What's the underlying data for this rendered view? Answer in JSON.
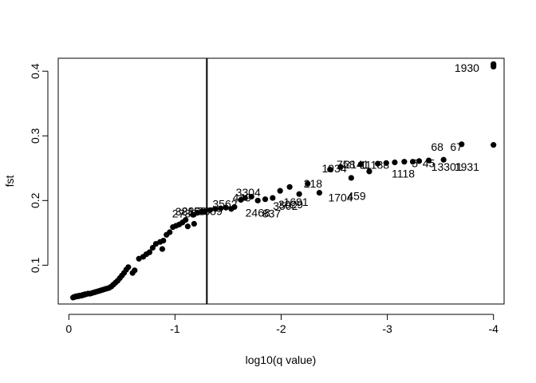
{
  "chart_data": {
    "type": "scatter",
    "xlabel": "log10(q value)",
    "ylabel": "fst",
    "x_tick_labels": [
      "0",
      "-1",
      "-2",
      "-3",
      "-4"
    ],
    "y_tick_labels": [
      "0.1",
      "0.2",
      "0.3",
      "0.4"
    ],
    "xlim": [
      0.1,
      -4.1
    ],
    "ylim": [
      0.04,
      0.42
    ],
    "threshold_x": -1.3,
    "point_color": "#000000",
    "line_color": "#000000",
    "points": [
      [
        -0.04,
        0.05
      ],
      [
        -0.05,
        0.051
      ],
      [
        -0.06,
        0.051
      ],
      [
        -0.07,
        0.052
      ],
      [
        -0.08,
        0.052
      ],
      [
        -0.09,
        0.052
      ],
      [
        -0.1,
        0.053
      ],
      [
        -0.11,
        0.053
      ],
      [
        -0.12,
        0.053
      ],
      [
        -0.13,
        0.054
      ],
      [
        -0.14,
        0.054
      ],
      [
        -0.15,
        0.055
      ],
      [
        -0.16,
        0.055
      ],
      [
        -0.18,
        0.056
      ],
      [
        -0.2,
        0.056
      ],
      [
        -0.22,
        0.057
      ],
      [
        -0.24,
        0.058
      ],
      [
        -0.26,
        0.059
      ],
      [
        -0.28,
        0.06
      ],
      [
        -0.3,
        0.061
      ],
      [
        -0.32,
        0.062
      ],
      [
        -0.34,
        0.063
      ],
      [
        -0.36,
        0.064
      ],
      [
        -0.38,
        0.065
      ],
      [
        -0.4,
        0.067
      ],
      [
        -0.42,
        0.07
      ],
      [
        -0.44,
        0.073
      ],
      [
        -0.46,
        0.076
      ],
      [
        -0.48,
        0.08
      ],
      [
        -0.5,
        0.084
      ],
      [
        -0.52,
        0.088
      ],
      [
        -0.54,
        0.093
      ],
      [
        -0.56,
        0.097
      ],
      [
        -0.6,
        0.088
      ],
      [
        -0.62,
        0.092
      ],
      [
        -0.66,
        0.11
      ],
      [
        -0.7,
        0.113
      ],
      [
        -0.73,
        0.117
      ],
      [
        -0.76,
        0.12
      ],
      [
        -0.79,
        0.127
      ],
      [
        -0.82,
        0.133
      ],
      [
        -0.86,
        0.136
      ],
      [
        -0.89,
        0.138
      ],
      [
        -0.88,
        0.125
      ],
      [
        -0.92,
        0.147
      ],
      [
        -0.95,
        0.151
      ],
      [
        -0.98,
        0.159
      ],
      [
        -1.01,
        0.161
      ],
      [
        -1.04,
        0.163
      ],
      [
        -1.07,
        0.166
      ],
      [
        -1.1,
        0.17
      ],
      [
        -1.12,
        0.16
      ],
      [
        -1.17,
        0.178
      ],
      [
        -1.18,
        0.164
      ],
      [
        -1.21,
        0.181
      ],
      [
        -1.25,
        0.183
      ],
      [
        -1.28,
        0.183
      ],
      [
        -1.33,
        0.185
      ],
      [
        -1.38,
        0.187
      ],
      [
        -1.43,
        0.188
      ],
      [
        -1.48,
        0.189
      ],
      [
        -1.53,
        0.187
      ],
      [
        -1.56,
        0.19
      ],
      [
        -1.62,
        0.201
      ],
      [
        -1.66,
        0.204
      ],
      [
        -1.72,
        0.206
      ],
      [
        -1.78,
        0.2
      ],
      [
        -1.85,
        0.202
      ],
      [
        -1.92,
        0.204
      ],
      [
        -1.99,
        0.215
      ],
      [
        -2.08,
        0.221
      ],
      [
        -2.17,
        0.21
      ],
      [
        -2.25,
        0.226
      ],
      [
        -2.36,
        0.212
      ],
      [
        -2.46,
        0.248
      ],
      [
        -2.56,
        0.252
      ],
      [
        -2.66,
        0.235
      ],
      [
        -2.75,
        0.256
      ],
      [
        -2.83,
        0.245
      ],
      [
        -2.91,
        0.257
      ],
      [
        -2.99,
        0.258
      ],
      [
        -3.07,
        0.259
      ],
      [
        -3.16,
        0.26
      ],
      [
        -3.24,
        0.26
      ],
      [
        -3.3,
        0.261
      ],
      [
        -3.39,
        0.262
      ],
      [
        -3.53,
        0.263
      ],
      [
        -3.7,
        0.287
      ],
      [
        -4.0,
        0.286
      ],
      [
        -4.0,
        0.407
      ],
      [
        -4.0,
        0.409
      ],
      [
        -4.0,
        0.411
      ]
    ],
    "point_labels": [
      {
        "x": -1.09,
        "y": 0.18,
        "text": "2736"
      },
      {
        "x": -1.12,
        "y": 0.183,
        "text": "3815"
      },
      {
        "x": -1.18,
        "y": 0.184,
        "text": "2850"
      },
      {
        "x": -1.33,
        "y": 0.184,
        "text": "2859"
      },
      {
        "x": -1.47,
        "y": 0.195,
        "text": "3562"
      },
      {
        "x": -1.63,
        "y": 0.205,
        "text": "449"
      },
      {
        "x": -1.69,
        "y": 0.213,
        "text": "3304"
      },
      {
        "x": -1.78,
        "y": 0.181,
        "text": "2468"
      },
      {
        "x": -1.91,
        "y": 0.18,
        "text": "837"
      },
      {
        "x": -2.04,
        "y": 0.192,
        "text": "3502"
      },
      {
        "x": -2.09,
        "y": 0.194,
        "text": "3029"
      },
      {
        "x": -2.14,
        "y": 0.198,
        "text": "1691"
      },
      {
        "x": -2.3,
        "y": 0.226,
        "text": "218"
      },
      {
        "x": -2.56,
        "y": 0.205,
        "text": "1704"
      },
      {
        "x": -2.71,
        "y": 0.207,
        "text": "459"
      },
      {
        "x": -2.5,
        "y": 0.25,
        "text": "1934"
      },
      {
        "x": -2.61,
        "y": 0.256,
        "text": "758"
      },
      {
        "x": -2.71,
        "y": 0.256,
        "text": "2141"
      },
      {
        "x": -2.88,
        "y": 0.255,
        "text": "11188"
      },
      {
        "x": -3.15,
        "y": 0.242,
        "text": "1118"
      },
      {
        "x": -3.26,
        "y": 0.258,
        "text": "5"
      },
      {
        "x": -3.39,
        "y": 0.258,
        "text": "45"
      },
      {
        "x": -3.56,
        "y": 0.252,
        "text": "13301"
      },
      {
        "x": -3.75,
        "y": 0.252,
        "text": "1931"
      },
      {
        "x": -3.47,
        "y": 0.283,
        "text": "68"
      },
      {
        "x": -3.65,
        "y": 0.283,
        "text": "67"
      },
      {
        "x": -3.75,
        "y": 0.405,
        "text": "1930"
      }
    ]
  }
}
